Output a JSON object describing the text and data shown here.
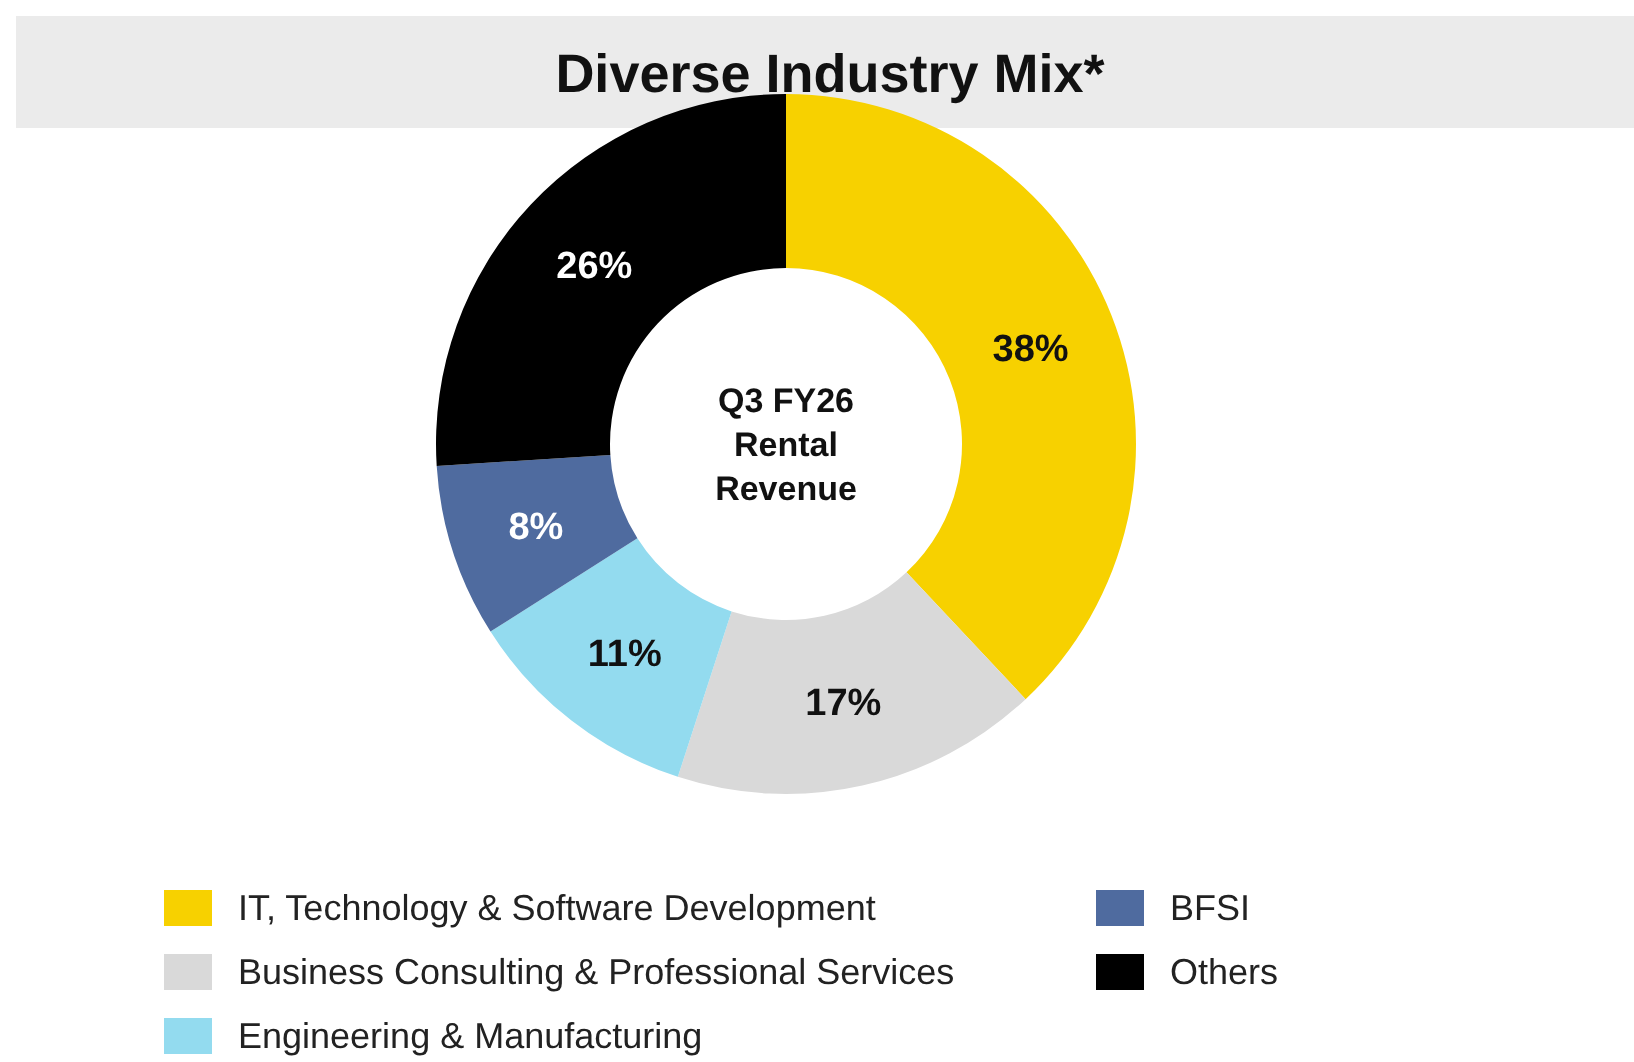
{
  "chart_data": {
    "type": "donut",
    "title": "Diverse Industry Mix*",
    "annotations": [
      "Q3 FY26 Rental Revenue"
    ],
    "categories": [
      "IT, Technology & Software Development",
      "Business Consulting & Professional Services",
      "Engineering & Manufacturing",
      "BFSI",
      "Others"
    ],
    "values": [
      38,
      17,
      11,
      8,
      26
    ],
    "colors": [
      "#f7d100",
      "#d9d9d9",
      "#93dbef",
      "#4f6b9f",
      "#000000"
    ],
    "value_labels": [
      "38%",
      "17%",
      "11%",
      "8%",
      "26%"
    ],
    "legend": "bottom"
  }
}
